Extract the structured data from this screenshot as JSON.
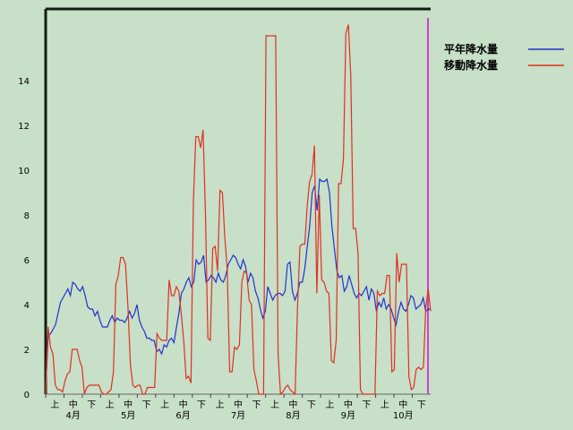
{
  "chart_data": {
    "type": "line",
    "ylim": [
      0,
      16
    ],
    "yticks": [
      0,
      2,
      4,
      6,
      8,
      10,
      12,
      14
    ],
    "x_start_month": 4,
    "x_end_month": 10,
    "x_period_labels": [
      "上",
      "中",
      "下"
    ],
    "month_labels": [
      "4月",
      "5月",
      "6月",
      "7月",
      "8月",
      "9月",
      "10月"
    ],
    "grid": false,
    "legend_position": "top-right",
    "series": [
      {
        "name": "平年降水量",
        "color": "#2233cc",
        "values": [
          0.2,
          2.6,
          2.7,
          2.9,
          3.1,
          3.6,
          4.1,
          4.3,
          4.5,
          4.7,
          4.4,
          5.0,
          4.9,
          4.7,
          4.6,
          4.8,
          4.4,
          3.9,
          3.8,
          3.8,
          3.5,
          3.7,
          3.3,
          3.0,
          3.0,
          3.0,
          3.3,
          3.5,
          3.2,
          3.4,
          3.3,
          3.3,
          3.2,
          3.4,
          3.7,
          3.4,
          3.6,
          4.0,
          3.3,
          3.0,
          2.8,
          2.5,
          2.5,
          2.4,
          2.4,
          1.9,
          2.0,
          1.8,
          2.2,
          2.1,
          2.4,
          2.5,
          2.3,
          3.0,
          3.6,
          4.5,
          4.7,
          5.0,
          5.2,
          4.8,
          5.0,
          6.0,
          5.8,
          5.9,
          6.2,
          5.0,
          5.1,
          5.3,
          5.2,
          5.0,
          5.4,
          5.1,
          5.0,
          5.3,
          5.8,
          6.0,
          6.2,
          6.1,
          5.8,
          5.6,
          6.0,
          5.7,
          5.0,
          5.4,
          5.2,
          4.6,
          4.3,
          3.8,
          3.4,
          3.7,
          4.8,
          4.5,
          4.2,
          4.4,
          4.5,
          4.5,
          4.4,
          4.6,
          5.8,
          5.9,
          4.6,
          4.2,
          4.5,
          5.0,
          5.0,
          5.6,
          6.6,
          7.5,
          9.0,
          9.3,
          8.2,
          9.6,
          9.5,
          9.5,
          9.6,
          9.0,
          7.5,
          6.5,
          5.5,
          5.2,
          5.3,
          4.6,
          4.8,
          5.3,
          4.9,
          4.5,
          4.3,
          4.5,
          4.4,
          4.6,
          4.8,
          4.2,
          4.7,
          4.5,
          3.7,
          4.1,
          3.9,
          4.3,
          3.8,
          4.0,
          3.8,
          3.4,
          3.1,
          3.7,
          4.1,
          3.8,
          3.7,
          4.0,
          4.4,
          4.3,
          3.8,
          3.9,
          4.0,
          4.3,
          3.7,
          3.8,
          3.8
        ]
      },
      {
        "name": "移動降水量",
        "color": "#e03020",
        "values": [
          0.0,
          3.0,
          2.1,
          1.8,
          0.4,
          0.2,
          0.2,
          0.1,
          0.6,
          0.9,
          1.0,
          2.0,
          2.0,
          2.0,
          1.5,
          1.2,
          0.0,
          0.3,
          0.4,
          0.4,
          0.4,
          0.4,
          0.4,
          0.1,
          0.0,
          0.0,
          0.1,
          0.2,
          1.0,
          4.9,
          5.3,
          6.1,
          6.1,
          5.8,
          3.9,
          1.3,
          0.4,
          0.3,
          0.4,
          0.4,
          0.0,
          0.0,
          0.3,
          0.3,
          0.3,
          0.3,
          2.7,
          2.5,
          2.4,
          2.4,
          2.4,
          5.1,
          4.4,
          4.4,
          4.8,
          4.6,
          3.6,
          2.4,
          0.7,
          0.8,
          0.5,
          8.6,
          11.5,
          11.5,
          11.0,
          11.8,
          8.0,
          2.5,
          2.4,
          6.5,
          6.6,
          5.5,
          9.1,
          9.0,
          7.0,
          5.6,
          1.0,
          1.0,
          2.1,
          2.0,
          2.2,
          5.0,
          5.5,
          5.4,
          4.2,
          4.0,
          1.1,
          0.6,
          0.0,
          0.0,
          0.0,
          16.0,
          16.0,
          16.0,
          16.0,
          16.0,
          1.8,
          0.0,
          0.1,
          0.3,
          0.4,
          0.2,
          0.1,
          0.0,
          3.9,
          6.6,
          6.7,
          6.7,
          8.4,
          9.5,
          9.8,
          11.1,
          4.5,
          8.9,
          5.1,
          5.0,
          4.6,
          4.5,
          1.5,
          1.4,
          2.4,
          9.4,
          9.4,
          10.5,
          16.1,
          16.5,
          14.2,
          7.4,
          7.4,
          6.3,
          0.2,
          0.0,
          0.0,
          0.0,
          0.0,
          0.0,
          0.0,
          4.6,
          4.4,
          4.5,
          4.5,
          5.3,
          5.3,
          1.0,
          1.1,
          6.3,
          5.0,
          5.8,
          5.8,
          5.8,
          0.8,
          0.2,
          0.3,
          1.1,
          1.2,
          1.1,
          1.2,
          3.9,
          4.7,
          3.7
        ]
      }
    ]
  }
}
